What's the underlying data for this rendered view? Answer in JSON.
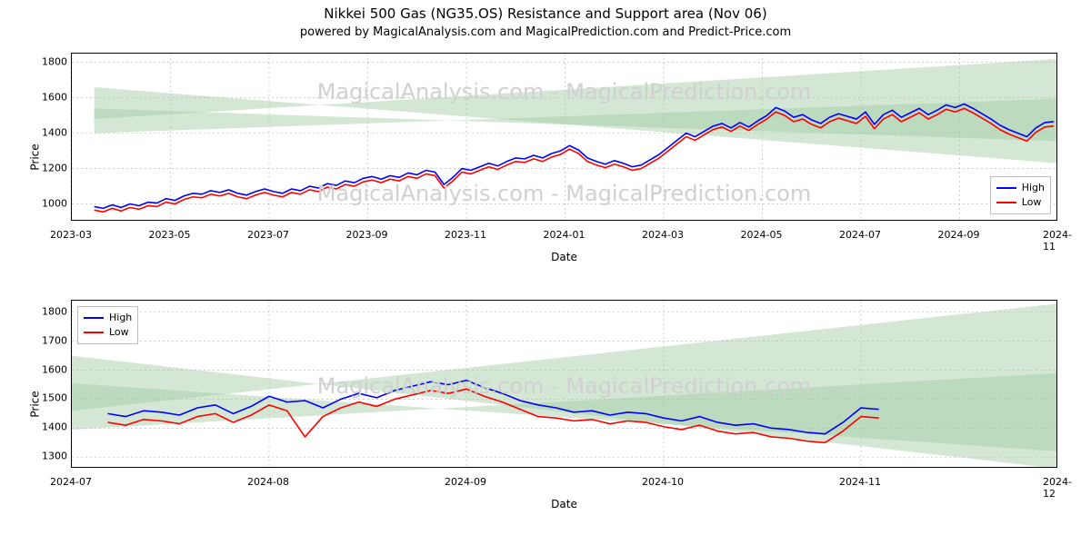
{
  "title": "Nikkei 500 Gas (NG35.OS) Resistance and Support area (Nov 06)",
  "subtitle": "powered by MagicalAnalysis.com and MagicalPrediction.com and Predict-Price.com",
  "watermark": "MagicalAnalysis.com - MagicalPrediction.com",
  "legend": {
    "high": "High",
    "low": "Low"
  },
  "xlabel": "Date",
  "ylabel": "Price",
  "colors": {
    "high": "#0000ff",
    "low": "#ff0000",
    "band_fill": "#9fc9a1",
    "band_fill_opacity": 0.45,
    "grid": "#b0b0b0",
    "border": "#000000",
    "background": "#ffffff",
    "watermark": "#d0d0d0"
  },
  "panels": {
    "top": {
      "legend_pos": "bottom-right",
      "ylim": [
        900,
        1850
      ],
      "yticks": [
        1000,
        1200,
        1400,
        1600,
        1800
      ],
      "xrange": [
        0,
        440
      ],
      "xticks": [
        {
          "t": 0,
          "label": "2023-03"
        },
        {
          "t": 44,
          "label": "2023-05"
        },
        {
          "t": 88,
          "label": "2023-07"
        },
        {
          "t": 132,
          "label": "2023-09"
        },
        {
          "t": 176,
          "label": "2023-11"
        },
        {
          "t": 220,
          "label": "2024-01"
        },
        {
          "t": 264,
          "label": "2024-03"
        },
        {
          "t": 308,
          "label": "2024-05"
        },
        {
          "t": 352,
          "label": "2024-07"
        },
        {
          "t": 396,
          "label": "2024-09"
        },
        {
          "t": 440,
          "label": "2024-11"
        }
      ],
      "bands": [
        {
          "p0": [
            10,
            1400
          ],
          "p1": [
            440,
            1595
          ],
          "p2": [
            440,
            1355
          ],
          "p3": [
            10,
            1540
          ]
        },
        {
          "p0": [
            10,
            1480
          ],
          "p1": [
            440,
            1820
          ],
          "p2": [
            440,
            1230
          ],
          "p3": [
            10,
            1660
          ]
        }
      ],
      "high": [
        [
          10,
          985
        ],
        [
          14,
          975
        ],
        [
          18,
          995
        ],
        [
          22,
          980
        ],
        [
          26,
          1000
        ],
        [
          30,
          990
        ],
        [
          34,
          1010
        ],
        [
          38,
          1005
        ],
        [
          42,
          1030
        ],
        [
          46,
          1020
        ],
        [
          50,
          1045
        ],
        [
          54,
          1060
        ],
        [
          58,
          1055
        ],
        [
          62,
          1075
        ],
        [
          66,
          1065
        ],
        [
          70,
          1080
        ],
        [
          74,
          1060
        ],
        [
          78,
          1050
        ],
        [
          82,
          1070
        ],
        [
          86,
          1085
        ],
        [
          90,
          1070
        ],
        [
          94,
          1060
        ],
        [
          98,
          1085
        ],
        [
          102,
          1075
        ],
        [
          106,
          1100
        ],
        [
          110,
          1090
        ],
        [
          114,
          1115
        ],
        [
          118,
          1105
        ],
        [
          122,
          1130
        ],
        [
          126,
          1120
        ],
        [
          130,
          1145
        ],
        [
          134,
          1155
        ],
        [
          138,
          1140
        ],
        [
          142,
          1160
        ],
        [
          146,
          1150
        ],
        [
          150,
          1175
        ],
        [
          154,
          1165
        ],
        [
          158,
          1190
        ],
        [
          162,
          1180
        ],
        [
          166,
          1110
        ],
        [
          170,
          1150
        ],
        [
          174,
          1200
        ],
        [
          178,
          1190
        ],
        [
          182,
          1210
        ],
        [
          186,
          1230
        ],
        [
          190,
          1215
        ],
        [
          194,
          1240
        ],
        [
          198,
          1260
        ],
        [
          202,
          1255
        ],
        [
          206,
          1275
        ],
        [
          210,
          1260
        ],
        [
          214,
          1285
        ],
        [
          218,
          1300
        ],
        [
          222,
          1330
        ],
        [
          226,
          1305
        ],
        [
          230,
          1260
        ],
        [
          234,
          1240
        ],
        [
          238,
          1225
        ],
        [
          242,
          1245
        ],
        [
          246,
          1230
        ],
        [
          250,
          1210
        ],
        [
          254,
          1220
        ],
        [
          258,
          1250
        ],
        [
          262,
          1280
        ],
        [
          266,
          1320
        ],
        [
          270,
          1360
        ],
        [
          274,
          1400
        ],
        [
          278,
          1380
        ],
        [
          282,
          1410
        ],
        [
          286,
          1440
        ],
        [
          290,
          1455
        ],
        [
          294,
          1430
        ],
        [
          298,
          1460
        ],
        [
          302,
          1435
        ],
        [
          306,
          1470
        ],
        [
          310,
          1500
        ],
        [
          314,
          1545
        ],
        [
          318,
          1525
        ],
        [
          322,
          1490
        ],
        [
          326,
          1505
        ],
        [
          330,
          1475
        ],
        [
          334,
          1455
        ],
        [
          338,
          1490
        ],
        [
          342,
          1510
        ],
        [
          346,
          1495
        ],
        [
          350,
          1480
        ],
        [
          354,
          1520
        ],
        [
          358,
          1450
        ],
        [
          362,
          1505
        ],
        [
          366,
          1530
        ],
        [
          370,
          1490
        ],
        [
          374,
          1515
        ],
        [
          378,
          1540
        ],
        [
          382,
          1505
        ],
        [
          386,
          1530
        ],
        [
          390,
          1560
        ],
        [
          394,
          1545
        ],
        [
          398,
          1565
        ],
        [
          402,
          1540
        ],
        [
          406,
          1510
        ],
        [
          410,
          1480
        ],
        [
          414,
          1445
        ],
        [
          418,
          1420
        ],
        [
          422,
          1400
        ],
        [
          426,
          1380
        ],
        [
          430,
          1430
        ],
        [
          434,
          1460
        ],
        [
          438,
          1465
        ]
      ],
      "low": [
        [
          10,
          965
        ],
        [
          14,
          955
        ],
        [
          18,
          975
        ],
        [
          22,
          960
        ],
        [
          26,
          980
        ],
        [
          30,
          970
        ],
        [
          34,
          990
        ],
        [
          38,
          985
        ],
        [
          42,
          1010
        ],
        [
          46,
          1000
        ],
        [
          50,
          1025
        ],
        [
          54,
          1040
        ],
        [
          58,
          1035
        ],
        [
          62,
          1055
        ],
        [
          66,
          1045
        ],
        [
          70,
          1060
        ],
        [
          74,
          1040
        ],
        [
          78,
          1030
        ],
        [
          82,
          1050
        ],
        [
          86,
          1065
        ],
        [
          90,
          1050
        ],
        [
          94,
          1040
        ],
        [
          98,
          1065
        ],
        [
          102,
          1055
        ],
        [
          106,
          1080
        ],
        [
          110,
          1070
        ],
        [
          114,
          1095
        ],
        [
          118,
          1085
        ],
        [
          122,
          1110
        ],
        [
          126,
          1100
        ],
        [
          130,
          1125
        ],
        [
          134,
          1135
        ],
        [
          138,
          1120
        ],
        [
          142,
          1140
        ],
        [
          146,
          1130
        ],
        [
          150,
          1155
        ],
        [
          154,
          1145
        ],
        [
          158,
          1170
        ],
        [
          162,
          1160
        ],
        [
          166,
          1090
        ],
        [
          170,
          1130
        ],
        [
          174,
          1180
        ],
        [
          178,
          1170
        ],
        [
          182,
          1190
        ],
        [
          186,
          1210
        ],
        [
          190,
          1195
        ],
        [
          194,
          1220
        ],
        [
          198,
          1240
        ],
        [
          202,
          1235
        ],
        [
          206,
          1255
        ],
        [
          210,
          1240
        ],
        [
          214,
          1265
        ],
        [
          218,
          1280
        ],
        [
          222,
          1310
        ],
        [
          226,
          1285
        ],
        [
          230,
          1240
        ],
        [
          234,
          1220
        ],
        [
          238,
          1205
        ],
        [
          242,
          1225
        ],
        [
          246,
          1210
        ],
        [
          250,
          1190
        ],
        [
          254,
          1200
        ],
        [
          258,
          1230
        ],
        [
          262,
          1260
        ],
        [
          266,
          1300
        ],
        [
          270,
          1340
        ],
        [
          274,
          1380
        ],
        [
          278,
          1360
        ],
        [
          282,
          1390
        ],
        [
          286,
          1420
        ],
        [
          290,
          1435
        ],
        [
          294,
          1410
        ],
        [
          298,
          1440
        ],
        [
          302,
          1415
        ],
        [
          306,
          1450
        ],
        [
          310,
          1480
        ],
        [
          314,
          1520
        ],
        [
          318,
          1500
        ],
        [
          322,
          1465
        ],
        [
          326,
          1480
        ],
        [
          330,
          1450
        ],
        [
          334,
          1430
        ],
        [
          338,
          1465
        ],
        [
          342,
          1485
        ],
        [
          346,
          1470
        ],
        [
          350,
          1455
        ],
        [
          354,
          1495
        ],
        [
          358,
          1425
        ],
        [
          362,
          1480
        ],
        [
          366,
          1505
        ],
        [
          370,
          1465
        ],
        [
          374,
          1490
        ],
        [
          378,
          1515
        ],
        [
          382,
          1480
        ],
        [
          386,
          1505
        ],
        [
          390,
          1535
        ],
        [
          394,
          1520
        ],
        [
          398,
          1540
        ],
        [
          402,
          1515
        ],
        [
          406,
          1485
        ],
        [
          410,
          1455
        ],
        [
          414,
          1420
        ],
        [
          418,
          1395
        ],
        [
          422,
          1375
        ],
        [
          426,
          1355
        ],
        [
          430,
          1405
        ],
        [
          434,
          1435
        ],
        [
          438,
          1440
        ]
      ]
    },
    "bottom": {
      "legend_pos": "top-left",
      "ylim": [
        1260,
        1840
      ],
      "yticks": [
        1300,
        1400,
        1500,
        1600,
        1700,
        1800
      ],
      "xrange": [
        0,
        110
      ],
      "xticks": [
        {
          "t": 0,
          "label": "2024-07"
        },
        {
          "t": 22,
          "label": "2024-08"
        },
        {
          "t": 44,
          "label": "2024-09"
        },
        {
          "t": 66,
          "label": "2024-10"
        },
        {
          "t": 88,
          "label": "2024-11"
        },
        {
          "t": 110,
          "label": "2024-12"
        }
      ],
      "bands": [
        {
          "p0": [
            0,
            1395
          ],
          "p1": [
            110,
            1590
          ],
          "p2": [
            110,
            1320
          ],
          "p3": [
            0,
            1555
          ]
        },
        {
          "p0": [
            0,
            1460
          ],
          "p1": [
            110,
            1830
          ],
          "p2": [
            110,
            1260
          ],
          "p3": [
            0,
            1650
          ]
        }
      ],
      "high": [
        [
          4,
          1450
        ],
        [
          6,
          1440
        ],
        [
          8,
          1460
        ],
        [
          10,
          1455
        ],
        [
          12,
          1445
        ],
        [
          14,
          1470
        ],
        [
          16,
          1480
        ],
        [
          18,
          1450
        ],
        [
          20,
          1475
        ],
        [
          22,
          1510
        ],
        [
          24,
          1490
        ],
        [
          26,
          1495
        ],
        [
          28,
          1470
        ],
        [
          30,
          1500
        ],
        [
          32,
          1520
        ],
        [
          34,
          1505
        ],
        [
          36,
          1530
        ],
        [
          38,
          1545
        ],
        [
          40,
          1560
        ],
        [
          42,
          1550
        ],
        [
          44,
          1565
        ],
        [
          46,
          1540
        ],
        [
          48,
          1520
        ],
        [
          50,
          1495
        ],
        [
          52,
          1480
        ],
        [
          54,
          1470
        ],
        [
          56,
          1455
        ],
        [
          58,
          1460
        ],
        [
          60,
          1445
        ],
        [
          62,
          1455
        ],
        [
          64,
          1450
        ],
        [
          66,
          1435
        ],
        [
          68,
          1425
        ],
        [
          70,
          1440
        ],
        [
          72,
          1420
        ],
        [
          74,
          1410
        ],
        [
          76,
          1415
        ],
        [
          78,
          1400
        ],
        [
          80,
          1395
        ],
        [
          82,
          1385
        ],
        [
          84,
          1380
        ],
        [
          86,
          1420
        ],
        [
          88,
          1470
        ],
        [
          90,
          1465
        ]
      ],
      "low": [
        [
          4,
          1420
        ],
        [
          6,
          1410
        ],
        [
          8,
          1430
        ],
        [
          10,
          1425
        ],
        [
          12,
          1415
        ],
        [
          14,
          1440
        ],
        [
          16,
          1450
        ],
        [
          18,
          1420
        ],
        [
          20,
          1445
        ],
        [
          22,
          1480
        ],
        [
          24,
          1460
        ],
        [
          26,
          1370
        ],
        [
          28,
          1440
        ],
        [
          30,
          1470
        ],
        [
          32,
          1490
        ],
        [
          34,
          1475
        ],
        [
          36,
          1500
        ],
        [
          38,
          1515
        ],
        [
          40,
          1530
        ],
        [
          42,
          1520
        ],
        [
          44,
          1535
        ],
        [
          46,
          1510
        ],
        [
          48,
          1490
        ],
        [
          50,
          1465
        ],
        [
          52,
          1440
        ],
        [
          54,
          1435
        ],
        [
          56,
          1425
        ],
        [
          58,
          1430
        ],
        [
          60,
          1415
        ],
        [
          62,
          1425
        ],
        [
          64,
          1420
        ],
        [
          66,
          1405
        ],
        [
          68,
          1395
        ],
        [
          70,
          1410
        ],
        [
          72,
          1390
        ],
        [
          74,
          1380
        ],
        [
          76,
          1385
        ],
        [
          78,
          1370
        ],
        [
          80,
          1365
        ],
        [
          82,
          1355
        ],
        [
          84,
          1350
        ],
        [
          86,
          1390
        ],
        [
          88,
          1440
        ],
        [
          90,
          1435
        ]
      ]
    }
  }
}
